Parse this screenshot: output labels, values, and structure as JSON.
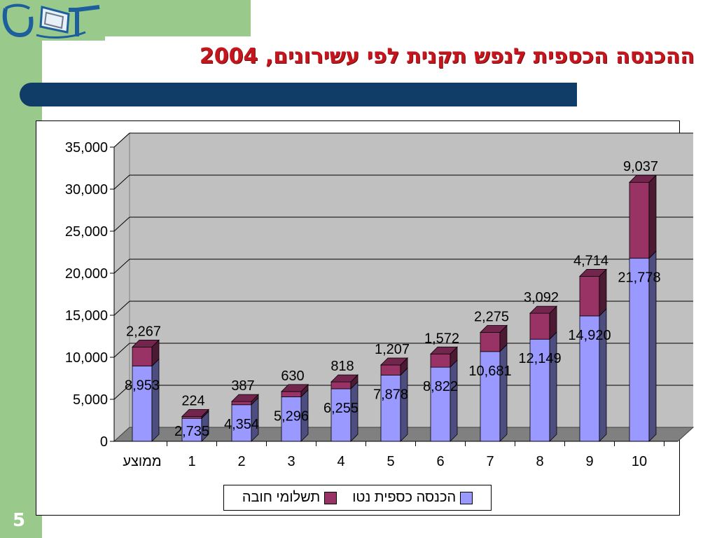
{
  "slide": {
    "logo_text": "JCT",
    "title": "ההכנסה הכספית לנפש תקנית לפי עשירונים, 2004",
    "number": "5"
  },
  "colors": {
    "green_band": "#9ac98c",
    "title_red": "#c4161c",
    "title_bar": "#103c68",
    "net_income": "#9999ff",
    "compulsory_payments": "#993366"
  },
  "chart_data": {
    "type": "bar",
    "stacked": true,
    "three_d": true,
    "categories": [
      "ממוצע",
      "1",
      "2",
      "3",
      "4",
      "5",
      "6",
      "7",
      "8",
      "9",
      "10"
    ],
    "series": [
      {
        "name": "הכנסה כספית נטו",
        "color": "#9999ff",
        "values": [
          8953,
          2735,
          4354,
          5296,
          6255,
          7878,
          8822,
          10681,
          12149,
          14920,
          21778
        ],
        "labels": [
          "8,953",
          "2,735",
          "4,354",
          "5,296",
          "6,255",
          "7,878",
          "8,822",
          "10,681",
          "12,149",
          "14,920",
          "21,778"
        ]
      },
      {
        "name": "תשלומי חובה",
        "color": "#993366",
        "values": [
          2267,
          224,
          387,
          630,
          818,
          1207,
          1572,
          2275,
          3092,
          4714,
          9037
        ],
        "labels": [
          "2,267",
          "224",
          "387",
          "630",
          "818",
          "1,207",
          "1,572",
          "2,275",
          "3,092",
          "4,714",
          "9,037"
        ]
      }
    ],
    "ylim": [
      0,
      35000
    ],
    "y_ticks": [
      0,
      5000,
      10000,
      15000,
      20000,
      25000,
      30000,
      35000
    ],
    "y_tick_labels": [
      "0",
      "5,000",
      "10,000",
      "15,000",
      "20,000",
      "25,000",
      "30,000",
      "35,000"
    ],
    "grid": true,
    "legend_position": "bottom",
    "title": "",
    "xlabel": "",
    "ylabel": ""
  }
}
